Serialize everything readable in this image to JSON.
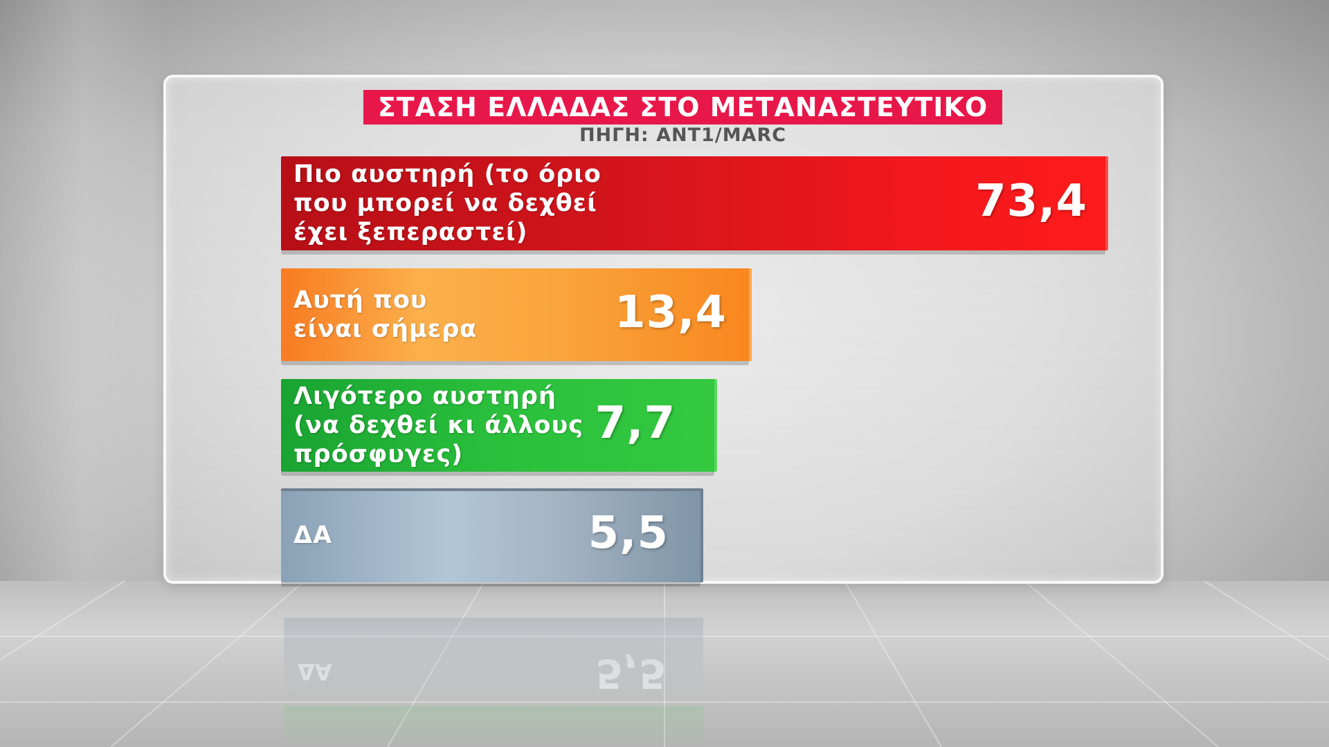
{
  "chart_data": {
    "type": "bar",
    "orientation": "horizontal",
    "title": "ΣΤΑΣΗ ΕΛΛΑΔΑΣ ΣΤΟ ΜΕΤΑΝΑΣΤΕΥΤΙΚΟ",
    "subtitle": "ΠΗΓΗ: ANT1/MARC",
    "categories": [
      "Πιο αυστηρή (το όριο\nπου μπορεί να δεχθεί\nέχει ξεπεραστεί)",
      "Αυτή που\nείναι σήμερα",
      "Λιγότερο αυστηρή\n(να δεχθεί κι άλλους\nπρόσφυγες)",
      "ΔΑ"
    ],
    "values": [
      73.4,
      13.4,
      7.7,
      5.5
    ],
    "value_labels": [
      "73,4",
      "13,4",
      "7,7",
      "5,5"
    ],
    "colors": [
      "#e0141c",
      "#f99531",
      "#27b83a",
      "#9fb3c4"
    ],
    "xlabel": "",
    "ylabel": "",
    "grid": false,
    "legend": "none"
  },
  "colors": {
    "title_bg": "#e8174a",
    "title_text": "#ffffff"
  }
}
